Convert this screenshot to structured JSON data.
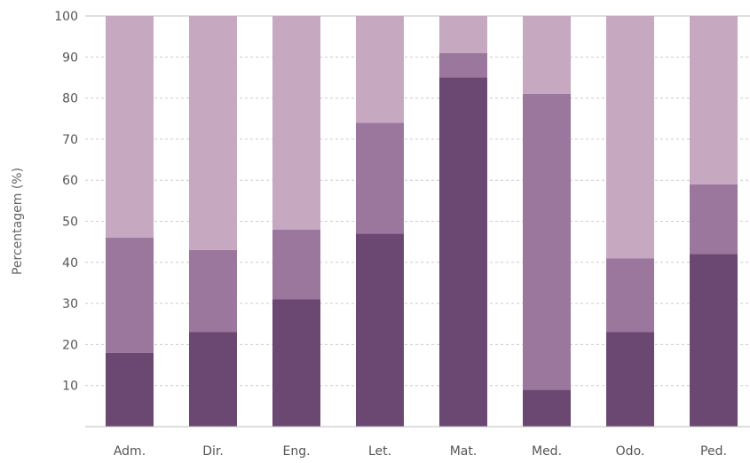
{
  "chart_data": {
    "type": "bar",
    "stacked": true,
    "title": "",
    "xlabel": "",
    "ylabel": "Percentagem (%)",
    "ylim": [
      0,
      100
    ],
    "yticks": [
      10,
      20,
      30,
      40,
      50,
      60,
      70,
      80,
      90,
      100
    ],
    "grid": "horizontal dashed",
    "legend": "none",
    "categories": [
      "Adm.",
      "Dir.",
      "Eng.",
      "Let.",
      "Mat.",
      "Med.",
      "Odo.",
      "Ped."
    ],
    "series": [
      {
        "color": "#6b4872",
        "values": [
          18,
          23,
          31,
          47,
          85,
          9,
          23,
          42
        ]
      },
      {
        "color": "#9b779d",
        "values": [
          28,
          20,
          17,
          27,
          6,
          72,
          18,
          17
        ]
      },
      {
        "color": "#c7a8c1",
        "values": [
          54,
          57,
          52,
          26,
          9,
          19,
          59,
          41
        ]
      }
    ]
  }
}
